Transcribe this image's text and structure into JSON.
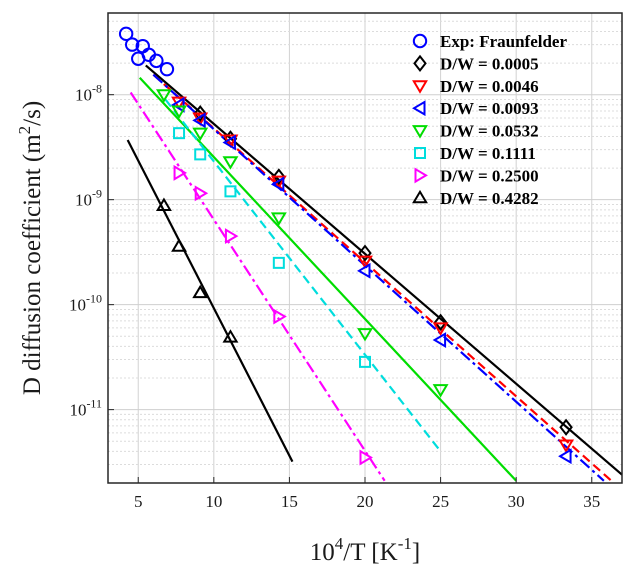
{
  "chart_data": {
    "type": "scatter",
    "title": "",
    "xlabel_parts": {
      "base": "10",
      "sup1": "4",
      "mid": "/T [K",
      "sup2": "-1",
      "end": "]"
    },
    "ylabel_parts": {
      "pre": "D diffusion coefficient (m",
      "sup": "2",
      "post": "/s)"
    },
    "x_axis": {
      "range": [
        3,
        37
      ],
      "ticks": [
        5,
        10,
        15,
        20,
        25,
        30,
        35
      ],
      "tick_labels": [
        "5",
        "10",
        "15",
        "20",
        "25",
        "30",
        "35"
      ]
    },
    "y_axis": {
      "scale": "log",
      "range": [
        2e-12,
        6e-08
      ],
      "ticks": [
        1e-11,
        1e-10,
        1e-09,
        1e-08
      ],
      "tick_labels": [
        {
          "base": "10",
          "exp": "-11"
        },
        {
          "base": "10",
          "exp": "-10"
        },
        {
          "base": "10",
          "exp": "-9"
        },
        {
          "base": "10",
          "exp": "-8"
        }
      ]
    },
    "grid": true,
    "legend_position": "top-right",
    "series": [
      {
        "name": "Exp: Fraunfelder",
        "color": "#0000ff",
        "marker": "circle",
        "line": "none",
        "x": [
          4.2,
          4.6,
          5.0,
          5.3,
          5.7,
          6.2,
          6.9
        ],
        "y": [
          3.8e-08,
          3e-08,
          2.2e-08,
          2.9e-08,
          2.4e-08,
          2.1e-08,
          1.75e-08
        ]
      },
      {
        "name": "D/W = 0.0005",
        "color": "#000000",
        "marker": "diamond",
        "line": "solid",
        "x": [
          9.1,
          11.1,
          14.3,
          20.0,
          25.0,
          33.3
        ],
        "y": [
          6.6e-09,
          3.8e-09,
          1.65e-09,
          3.1e-10,
          6.8e-11,
          6.8e-12
        ],
        "fit": {
          "x1": 5.5,
          "y1": 1.9e-08,
          "x2": 37.0,
          "y2": 2.4e-12,
          "dash": ""
        }
      },
      {
        "name": "D/W = 0.0046",
        "color": "#ff0000",
        "marker": "triangle-down",
        "line": "dashed",
        "x": [
          7.7,
          9.1,
          11.1,
          14.3,
          20.0,
          25.0,
          33.3
        ],
        "y": [
          8.5e-09,
          6e-09,
          3.7e-09,
          1.5e-09,
          2.6e-10,
          6e-11,
          4.6e-12
        ],
        "fit": {
          "x1": 6.0,
          "y1": 1.55e-08,
          "x2": 36.3,
          "y2": 2.1e-12,
          "dash": "9 5"
        }
      },
      {
        "name": "D/W = 0.0093",
        "color": "#0000ff",
        "marker": "triangle-left",
        "line": "dashdot",
        "x": [
          7.7,
          9.1,
          11.1,
          14.3,
          20.0,
          25.0,
          33.3
        ],
        "y": [
          8e-09,
          5.7e-09,
          3.5e-09,
          1.4e-09,
          2.1e-10,
          4.6e-11,
          3.6e-12
        ],
        "fit": {
          "x1": 6.0,
          "y1": 1.55e-08,
          "x2": 35.8,
          "y2": 2.1e-12,
          "dash": "12 4 3 4"
        }
      },
      {
        "name": "D/W = 0.0532",
        "color": "#00dd00",
        "marker": "triangle-down",
        "line": "solid",
        "x": [
          6.7,
          7.7,
          9.1,
          11.1,
          14.3,
          20.0,
          25.0
        ],
        "y": [
          1e-08,
          7e-09,
          4.3e-09,
          2.3e-09,
          6.7e-10,
          5.3e-11,
          1.55e-11
        ],
        "fit": {
          "x1": 5.1,
          "y1": 1.45e-08,
          "x2": 30.0,
          "y2": 2.1e-12,
          "dash": ""
        }
      },
      {
        "name": "D/W = 0.1111",
        "color": "#00dddd",
        "marker": "square",
        "line": "dashed",
        "x": [
          7.7,
          9.1,
          11.1,
          14.3,
          20.0
        ],
        "y": [
          4.3e-09,
          2.7e-09,
          1.2e-09,
          2.5e-10,
          2.85e-11
        ],
        "fit": {
          "x1": 6.8,
          "y1": 9e-09,
          "x2": 25.0,
          "y2": 4e-12,
          "dash": "9 5"
        }
      },
      {
        "name": "D/W = 0.2500",
        "color": "#ff00ff",
        "marker": "triangle-right",
        "line": "dashdot",
        "x": [
          7.7,
          9.1,
          11.1,
          14.3,
          20.0
        ],
        "y": [
          1.8e-09,
          1.15e-09,
          4.5e-10,
          7.7e-11,
          3.5e-12
        ],
        "fit": {
          "x1": 4.5,
          "y1": 1.05e-08,
          "x2": 21.3,
          "y2": 2.1e-12,
          "dash": "12 4 3 4"
        }
      },
      {
        "name": "D/W = 0.4282",
        "color": "#000000",
        "marker": "triangle-up",
        "line": "solid",
        "x": [
          6.7,
          7.7,
          9.1,
          11.1
        ],
        "y": [
          8.8e-10,
          3.6e-10,
          1.3e-10,
          4.9e-11
        ],
        "fit": {
          "x1": 4.3,
          "y1": 3.7e-09,
          "x2": 15.2,
          "y2": 3.2e-12,
          "dash": ""
        }
      }
    ]
  }
}
